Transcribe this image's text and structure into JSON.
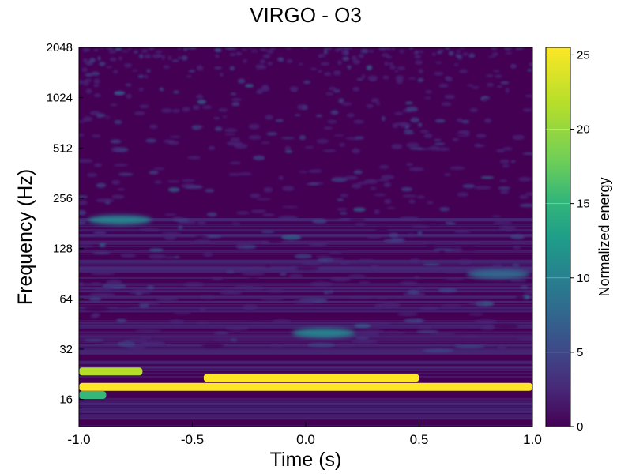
{
  "chart_data": {
    "type": "heatmap",
    "title": "VIRGO - O3",
    "xlabel": "Time (s)",
    "ylabel": "Frequency (Hz)",
    "xlim": [
      -1.0,
      1.0
    ],
    "xticks": [
      -1.0,
      -0.5,
      0.0,
      0.5,
      1.0
    ],
    "xtick_labels": [
      "-1.0",
      "-0.5",
      "0.0",
      "0.5",
      "1.0"
    ],
    "yscale": "log2",
    "ylim": [
      11,
      2048
    ],
    "yticks": [
      16,
      32,
      64,
      128,
      256,
      512,
      1024,
      2048
    ],
    "ytick_labels": [
      "16",
      "32",
      "64",
      "128",
      "256",
      "512",
      "1024",
      "2048"
    ],
    "colorbar": {
      "label": "Normalized energy",
      "range": [
        0,
        25.5
      ],
      "ticks": [
        0,
        5,
        10,
        15,
        20,
        25
      ],
      "tick_labels": [
        "0",
        "5",
        "10",
        "15",
        "20",
        "25"
      ],
      "colormap": "viridis"
    },
    "features": [
      {
        "kind": "band",
        "f": 19,
        "t0": -1.0,
        "t1": 1.0,
        "energy": 25.5
      },
      {
        "kind": "band",
        "f": 21.5,
        "t0": -0.45,
        "t1": 0.5,
        "energy": 25.5
      },
      {
        "kind": "band",
        "f": 23.5,
        "t0": -1.0,
        "t1": -0.72,
        "energy": 22
      },
      {
        "kind": "band",
        "f": 17,
        "t0": -1.0,
        "t1": -0.88,
        "energy": 16
      },
      {
        "kind": "blob",
        "t": 0.08,
        "f": 40,
        "energy": 12
      },
      {
        "kind": "blob",
        "t": -0.82,
        "f": 190,
        "energy": 11
      },
      {
        "kind": "blob",
        "t": 0.85,
        "f": 90,
        "energy": 9
      }
    ]
  }
}
